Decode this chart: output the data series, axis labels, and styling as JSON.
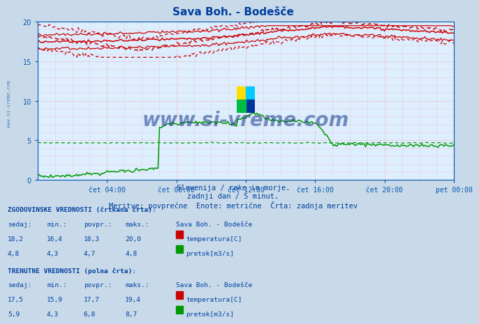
{
  "title": "Sava Boh. - Bodešče",
  "title_color": "#003f9e",
  "bg_color": "#ddeeff",
  "outer_bg_color": "#c8daea",
  "grid_color": "#ff9999",
  "axis_color": "#0055aa",
  "text_color": "#003f9e",
  "watermark_text": "www.si-vreme.com",
  "watermark_color": "#1a3a6e",
  "subtitle1": "Slovenija / reke in morje.",
  "subtitle2": "zadnji dan / 5 minut.",
  "subtitle3": "Meritve: povprečne  Enote: metrične  Črta: zadnja meritev",
  "xlabel_times": [
    "čet 04:00",
    "čet 08:00",
    "čet 12:00",
    "čet 16:00",
    "čet 20:00",
    "pet 00:00"
  ],
  "ylim": [
    0,
    20
  ],
  "yticks": [
    0,
    5,
    10,
    15,
    20
  ],
  "n_points": 288,
  "temp_color": "#cc0000",
  "flow_color": "#009900",
  "legend_box_temp": "#cc0000",
  "legend_box_flow": "#009900",
  "table_header_color": "#003f9e",
  "table_value_color": "#003f9e"
}
